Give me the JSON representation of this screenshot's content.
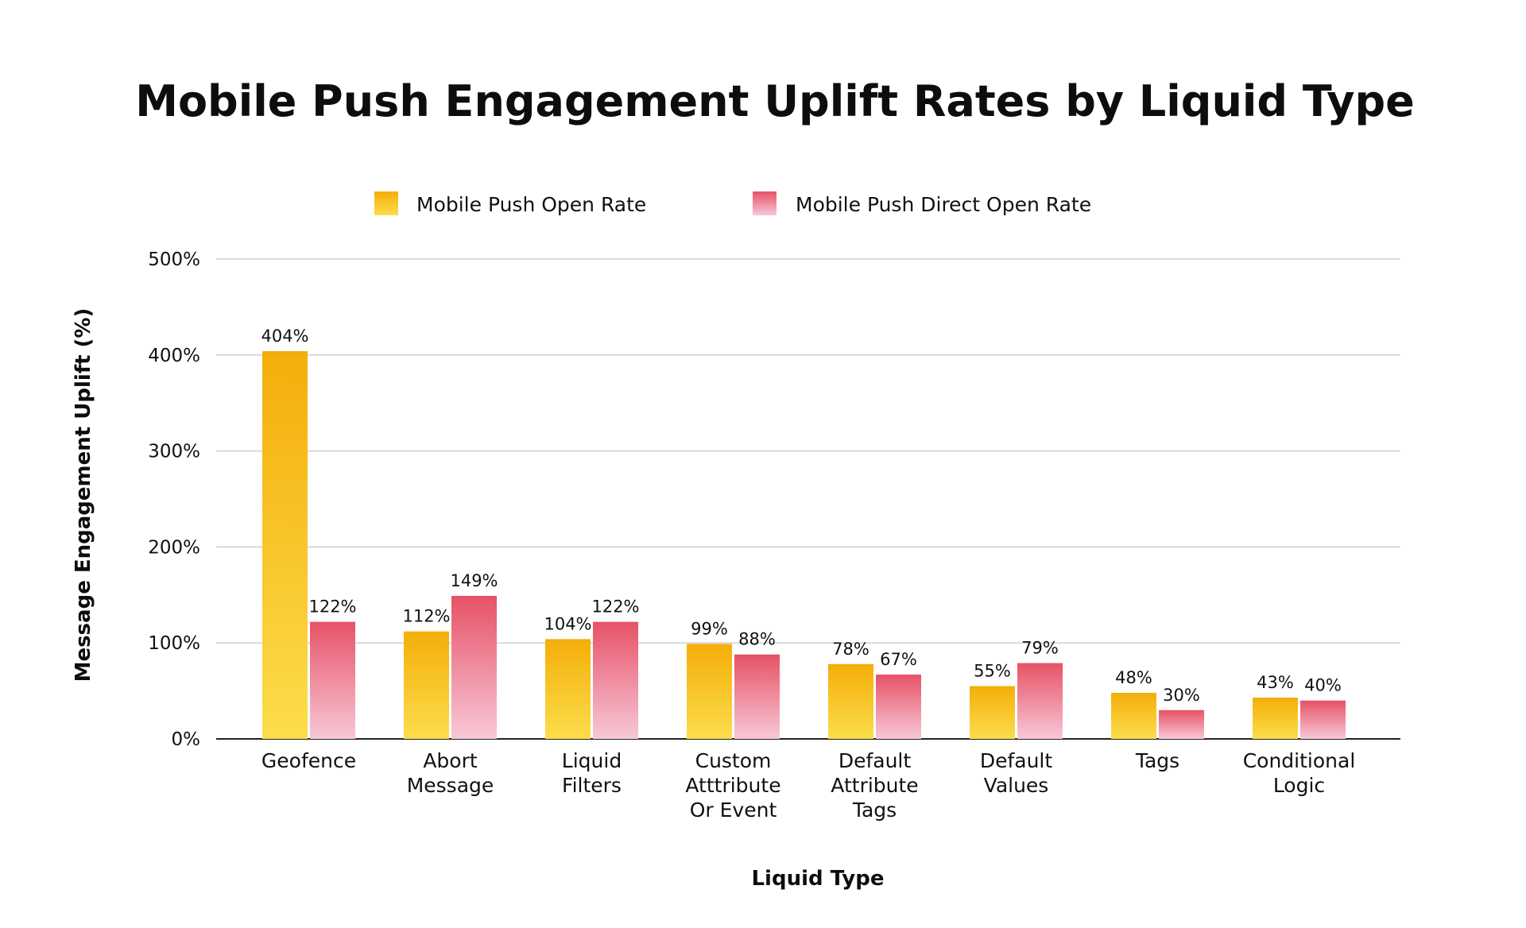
{
  "chart_data": {
    "type": "bar",
    "title": "Mobile Push Engagement Uplift Rates by Liquid Type",
    "xlabel": "Liquid Type",
    "ylabel": "Message Engagement Uplift (%)",
    "ylim": [
      0,
      500
    ],
    "yticks": [
      "0%",
      "100%",
      "200%",
      "300%",
      "400%",
      "500%"
    ],
    "grid": true,
    "legend_position": "top",
    "categories": [
      [
        "Geofence"
      ],
      [
        "Abort",
        "Message"
      ],
      [
        "Liquid",
        "Filters"
      ],
      [
        "Custom",
        "Atttribute",
        "Or Event"
      ],
      [
        "Default",
        "Attribute",
        "Tags"
      ],
      [
        "Default",
        "Values"
      ],
      [
        "Tags"
      ],
      [
        "Conditional",
        "Logic"
      ]
    ],
    "series": [
      {
        "name": "Mobile Push Open Rate",
        "values": [
          404,
          112,
          104,
          99,
          78,
          55,
          48,
          43
        ],
        "labels": [
          "404%",
          "112%",
          "104%",
          "99%",
          "78%",
          "55%",
          "48%",
          "43%"
        ],
        "color_top": "#F4AE0A",
        "color_bottom": "#FCDD4C"
      },
      {
        "name": "Mobile Push Direct Open Rate",
        "values": [
          122,
          149,
          122,
          88,
          67,
          79,
          30,
          40
        ],
        "labels": [
          "122%",
          "149%",
          "122%",
          "88%",
          "67%",
          "79%",
          "30%",
          "40%"
        ],
        "color_top": "#E65266",
        "color_bottom": "#F8C8D8"
      }
    ]
  }
}
